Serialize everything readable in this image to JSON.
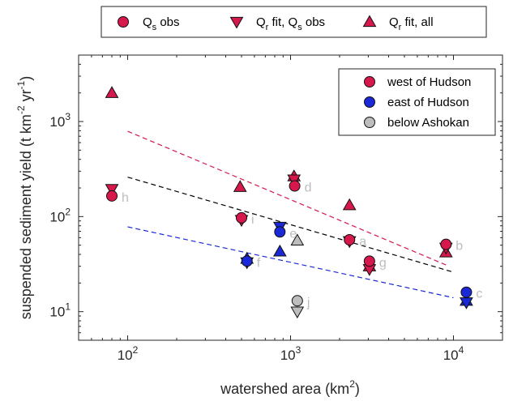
{
  "chart_data": {
    "type": "scatter",
    "xlabel": {
      "main": "watershed area (km",
      "sup": "2",
      "tail": ")"
    },
    "ylabel": {
      "a": "suspended sediment yield (t km",
      "sup1": "-2",
      "b": " yr",
      "sup2": "-1",
      "c": ")"
    },
    "x_scale": "log",
    "y_scale": "log",
    "xlim": [
      50,
      20000
    ],
    "ylim": [
      5,
      5000
    ],
    "x_ticks": [
      {
        "value": 100,
        "base": "10",
        "exp": "2"
      },
      {
        "value": 1000,
        "base": "10",
        "exp": "3"
      },
      {
        "value": 10000,
        "base": "10",
        "exp": "4"
      }
    ],
    "y_ticks": [
      {
        "value": 10,
        "base": "10",
        "exp": "1"
      },
      {
        "value": 100,
        "base": "10",
        "exp": "2"
      },
      {
        "value": 1000,
        "base": "10",
        "exp": "3"
      }
    ],
    "top_legend": [
      {
        "marker": "circle",
        "label": "Q",
        "sub": "s",
        "rest": " obs"
      },
      {
        "marker": "triangle-down",
        "label": "Q",
        "sub": "r",
        "rest": " fit, Q",
        "sub2": "s",
        "rest2": " obs"
      },
      {
        "marker": "triangle-up",
        "label": "Q",
        "sub": "r",
        "rest": " fit, all"
      }
    ],
    "groups": [
      {
        "key": "west",
        "label": "west of Hudson",
        "color": "#d6184d"
      },
      {
        "key": "east",
        "label": "east of Hudson",
        "color": "#1a28d6"
      },
      {
        "key": "below",
        "label": "below Ashokan",
        "color": "#bdbdbd"
      }
    ],
    "points": [
      {
        "group": "west",
        "marker": "triangle-up",
        "x": 80,
        "y": 2000
      },
      {
        "group": "west",
        "marker": "triangle-down",
        "x": 80,
        "y": 195
      },
      {
        "group": "west",
        "marker": "circle",
        "x": 80,
        "y": 165
      },
      {
        "group": "west",
        "marker": "triangle-up",
        "x": 490,
        "y": 205
      },
      {
        "group": "west",
        "marker": "triangle-down",
        "x": 500,
        "y": 92
      },
      {
        "group": "west",
        "marker": "circle",
        "x": 500,
        "y": 97
      },
      {
        "group": "west",
        "marker": "triangle-up",
        "x": 1050,
        "y": 265
      },
      {
        "group": "west",
        "marker": "triangle-down",
        "x": 1050,
        "y": 245
      },
      {
        "group": "west",
        "marker": "circle",
        "x": 1060,
        "y": 210
      },
      {
        "group": "west",
        "marker": "triangle-up",
        "x": 2300,
        "y": 132
      },
      {
        "group": "west",
        "marker": "triangle-down",
        "x": 2300,
        "y": 55
      },
      {
        "group": "west",
        "marker": "circle",
        "x": 2300,
        "y": 57
      },
      {
        "group": "west",
        "marker": "triangle-up",
        "x": 3050,
        "y": 30
      },
      {
        "group": "west",
        "marker": "triangle-down",
        "x": 3050,
        "y": 28
      },
      {
        "group": "west",
        "marker": "circle",
        "x": 3050,
        "y": 34
      },
      {
        "group": "west",
        "marker": "triangle-up",
        "x": 9000,
        "y": 42
      },
      {
        "group": "west",
        "marker": "triangle-down",
        "x": 9000,
        "y": 47
      },
      {
        "group": "west",
        "marker": "circle",
        "x": 9000,
        "y": 51
      },
      {
        "group": "east",
        "marker": "triangle-up",
        "x": 540,
        "y": 36
      },
      {
        "group": "east",
        "marker": "triangle-down",
        "x": 540,
        "y": 33
      },
      {
        "group": "east",
        "marker": "circle",
        "x": 540,
        "y": 34
      },
      {
        "group": "east",
        "marker": "triangle-up",
        "x": 860,
        "y": 43
      },
      {
        "group": "east",
        "marker": "triangle-down",
        "x": 860,
        "y": 78
      },
      {
        "group": "east",
        "marker": "circle",
        "x": 860,
        "y": 69
      },
      {
        "group": "east",
        "marker": "triangle-up",
        "x": 12000,
        "y": 13
      },
      {
        "group": "east",
        "marker": "triangle-down",
        "x": 12000,
        "y": 12.5
      },
      {
        "group": "east",
        "marker": "circle",
        "x": 12000,
        "y": 16
      },
      {
        "group": "below",
        "marker": "triangle-up",
        "x": 1100,
        "y": 56
      },
      {
        "group": "below",
        "marker": "triangle-down",
        "x": 1100,
        "y": 10
      },
      {
        "group": "below",
        "marker": "circle",
        "x": 1100,
        "y": 13
      }
    ],
    "fit_lines": [
      {
        "group": "west",
        "x": [
          100,
          9000
        ],
        "y": [
          790,
          31
        ]
      },
      {
        "group": "all",
        "color": "#000000",
        "x": [
          100,
          10000
        ],
        "y": [
          260,
          26
        ]
      },
      {
        "group": "east",
        "x": [
          100,
          10000
        ],
        "y": [
          78,
          14
        ]
      }
    ],
    "point_labels": [
      {
        "text": "h",
        "x": 80,
        "y": 165
      },
      {
        "text": "i",
        "x": 500,
        "y": 97
      },
      {
        "text": "e",
        "x": 860,
        "y": 69
      },
      {
        "text": "f",
        "x": 540,
        "y": 34
      },
      {
        "text": "d",
        "x": 1060,
        "y": 210
      },
      {
        "text": "a",
        "x": 2300,
        "y": 57
      },
      {
        "text": "g",
        "x": 3050,
        "y": 34
      },
      {
        "text": "b",
        "x": 9000,
        "y": 51
      },
      {
        "text": "c",
        "x": 12000,
        "y": 16
      },
      {
        "text": "j",
        "x": 1100,
        "y": 13
      }
    ]
  }
}
